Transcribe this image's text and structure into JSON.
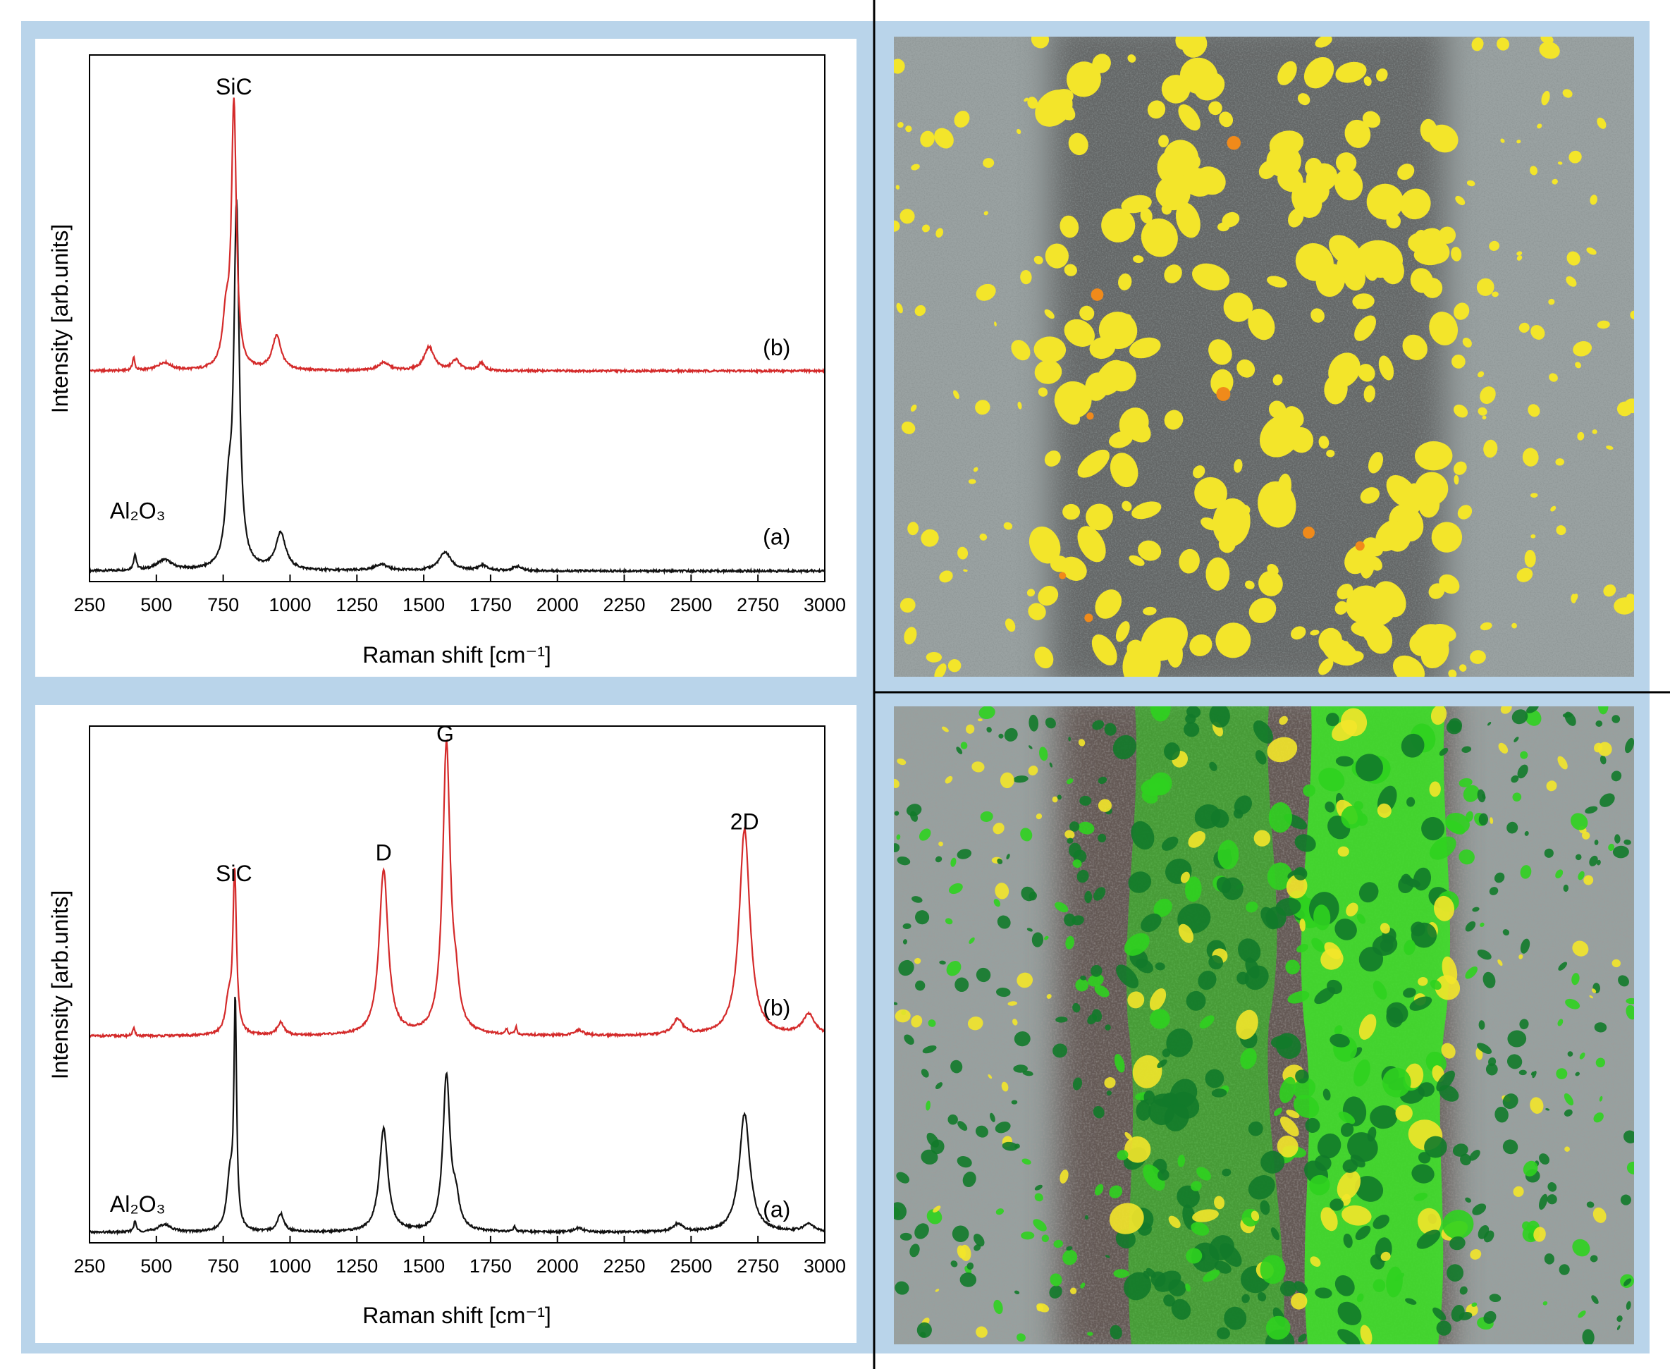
{
  "colors": {
    "frame": "#b9d4ea",
    "chart_background": "#ffffff",
    "series_a": "#111111",
    "series_b": "#d42a2a",
    "divider": "#000000",
    "map_yellow": "#f3e52a",
    "map_green": "#2fd11f",
    "map_dark_green": "#127a2a",
    "map_orange": "#f08a1a",
    "map_gray": "#8e9696"
  },
  "chart_data": [
    {
      "type": "line",
      "xlabel": "Raman shift [cm⁻¹]",
      "ylabel": "Intensity [arb.units]",
      "xlim": [
        250,
        3000
      ],
      "ylim": [
        0,
        1
      ],
      "xticks": [
        250,
        500,
        750,
        1000,
        1250,
        1500,
        1750,
        2000,
        2250,
        2500,
        2750,
        3000
      ],
      "grid": false,
      "annotations": [
        {
          "text": "SiC",
          "x": 790,
          "y": 0.925
        },
        {
          "text": "Al₂O₃",
          "x": 430,
          "y": 0.12
        },
        {
          "text": "(b)",
          "x": 2820,
          "y": 0.43
        },
        {
          "text": "(a)",
          "x": 2820,
          "y": 0.07
        }
      ],
      "series": [
        {
          "name": "(a)",
          "baseline": 0.02,
          "peaks": [
            {
              "center": 800,
              "height": 0.68,
              "width": 24
            },
            {
              "center": 770,
              "height": 0.12,
              "width": 30
            },
            {
              "center": 965,
              "height": 0.07,
              "width": 45
            },
            {
              "center": 420,
              "height": 0.03,
              "width": 12
            },
            {
              "center": 530,
              "height": 0.02,
              "width": 70
            },
            {
              "center": 1340,
              "height": 0.012,
              "width": 60
            },
            {
              "center": 1580,
              "height": 0.035,
              "width": 55
            },
            {
              "center": 1720,
              "height": 0.01,
              "width": 40
            },
            {
              "center": 1850,
              "height": 0.008,
              "width": 40
            }
          ]
        },
        {
          "name": "(b)",
          "baseline": 0.4,
          "peaks": [
            {
              "center": 790,
              "height": 0.5,
              "width": 22
            },
            {
              "center": 760,
              "height": 0.09,
              "width": 30
            },
            {
              "center": 950,
              "height": 0.065,
              "width": 40
            },
            {
              "center": 415,
              "height": 0.025,
              "width": 10
            },
            {
              "center": 530,
              "height": 0.015,
              "width": 60
            },
            {
              "center": 1350,
              "height": 0.015,
              "width": 50
            },
            {
              "center": 1520,
              "height": 0.045,
              "width": 45
            },
            {
              "center": 1620,
              "height": 0.02,
              "width": 35
            },
            {
              "center": 1715,
              "height": 0.015,
              "width": 25
            }
          ]
        }
      ]
    },
    {
      "type": "line",
      "xlabel": "Raman shift [cm⁻¹]",
      "ylabel": "Intensity [arb.units]",
      "xlim": [
        250,
        3000
      ],
      "ylim": [
        0,
        1
      ],
      "xticks": [
        250,
        500,
        750,
        1000,
        1250,
        1500,
        1750,
        2000,
        2250,
        2500,
        2750,
        3000
      ],
      "grid": false,
      "annotations": [
        {
          "text": "SiC",
          "x": 790,
          "y": 0.7
        },
        {
          "text": "D",
          "x": 1350,
          "y": 0.74
        },
        {
          "text": "G",
          "x": 1580,
          "y": 0.97
        },
        {
          "text": "2D",
          "x": 2700,
          "y": 0.8
        },
        {
          "text": "Al₂O₃",
          "x": 430,
          "y": 0.06
        },
        {
          "text": "(b)",
          "x": 2820,
          "y": 0.44
        },
        {
          "text": "(a)",
          "x": 2820,
          "y": 0.05
        }
      ],
      "series": [
        {
          "name": "(a)",
          "baseline": 0.02,
          "peaks": [
            {
              "center": 795,
              "height": 0.43,
              "width": 12
            },
            {
              "center": 775,
              "height": 0.1,
              "width": 28
            },
            {
              "center": 965,
              "height": 0.035,
              "width": 30
            },
            {
              "center": 420,
              "height": 0.02,
              "width": 12
            },
            {
              "center": 530,
              "height": 0.015,
              "width": 60
            },
            {
              "center": 1350,
              "height": 0.2,
              "width": 38
            },
            {
              "center": 1585,
              "height": 0.3,
              "width": 32
            },
            {
              "center": 1620,
              "height": 0.05,
              "width": 30
            },
            {
              "center": 2700,
              "height": 0.23,
              "width": 48
            },
            {
              "center": 2450,
              "height": 0.015,
              "width": 45
            },
            {
              "center": 2940,
              "height": 0.015,
              "width": 50
            },
            {
              "center": 1840,
              "height": 0.01,
              "width": 10
            },
            {
              "center": 2080,
              "height": 0.008,
              "width": 40
            }
          ]
        },
        {
          "name": "(b)",
          "baseline": 0.4,
          "peaks": [
            {
              "center": 793,
              "height": 0.31,
              "width": 16
            },
            {
              "center": 770,
              "height": 0.06,
              "width": 28
            },
            {
              "center": 965,
              "height": 0.025,
              "width": 30
            },
            {
              "center": 415,
              "height": 0.015,
              "width": 10
            },
            {
              "center": 1350,
              "height": 0.32,
              "width": 40
            },
            {
              "center": 1585,
              "height": 0.56,
              "width": 34
            },
            {
              "center": 1620,
              "height": 0.06,
              "width": 30
            },
            {
              "center": 2700,
              "height": 0.4,
              "width": 48
            },
            {
              "center": 2450,
              "height": 0.03,
              "width": 45
            },
            {
              "center": 2940,
              "height": 0.04,
              "width": 55
            },
            {
              "center": 1810,
              "height": 0.01,
              "width": 8
            },
            {
              "center": 1845,
              "height": 0.015,
              "width": 8
            },
            {
              "center": 2080,
              "height": 0.01,
              "width": 40
            }
          ]
        }
      ]
    }
  ]
}
